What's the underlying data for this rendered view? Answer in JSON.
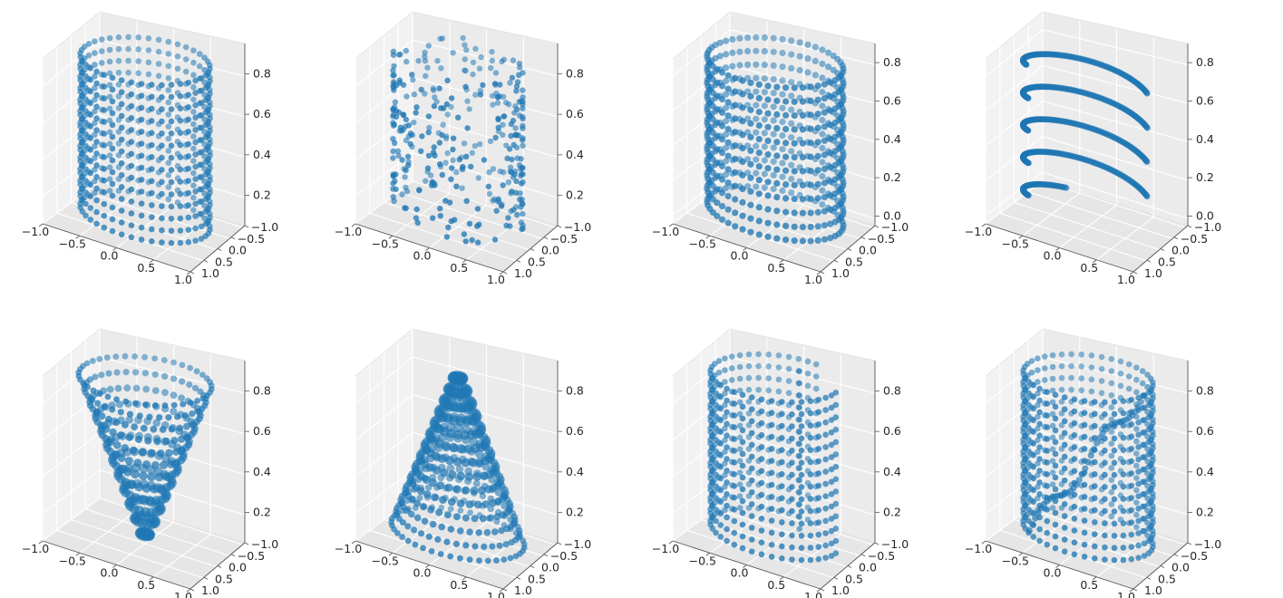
{
  "figure": {
    "layout": "2 rows x 4 columns of 3D scatter subplots"
  },
  "chart_data": [
    {
      "type": "scatter",
      "shape": "cylinder-grid",
      "x_ticks": [
        "−1.0",
        "−0.5",
        "0.0",
        "0.5",
        "1.0"
      ],
      "y_ticks": [
        "−1.0",
        "−0.5",
        "0.0",
        "0.5",
        "1.0"
      ],
      "z_ticks": [
        "0.2",
        "0.4",
        "0.6",
        "0.8"
      ],
      "xlim": [
        -1,
        1
      ],
      "ylim": [
        -1,
        1
      ],
      "zlim": [
        0.05,
        0.95
      ],
      "grid": true,
      "marker_color": "#1f77b4"
    },
    {
      "type": "scatter",
      "shape": "cylinder-random",
      "x_ticks": [
        "−1.0",
        "−0.5",
        "0.0",
        "0.5",
        "1.0"
      ],
      "y_ticks": [
        "−1.0",
        "−0.5",
        "0.0",
        "0.5",
        "1.0"
      ],
      "z_ticks": [
        "0.2",
        "0.4",
        "0.6",
        "0.8"
      ],
      "xlim": [
        -1,
        1
      ],
      "ylim": [
        -1,
        1
      ],
      "zlim": [
        0.05,
        0.95
      ],
      "grid": true,
      "marker_color": "#1f77b4"
    },
    {
      "type": "scatter",
      "shape": "rings",
      "x_ticks": [
        "−1.0",
        "−0.5",
        "0.0",
        "0.5",
        "1.0"
      ],
      "y_ticks": [
        "−1.0",
        "−0.5",
        "0.0",
        "0.5",
        "1.0"
      ],
      "z_ticks": [
        "0.0",
        "0.2",
        "0.4",
        "0.6",
        "0.8"
      ],
      "xlim": [
        -1,
        1
      ],
      "ylim": [
        -1,
        1
      ],
      "zlim": [
        -0.05,
        0.9
      ],
      "grid": true,
      "marker_color": "#1f77b4"
    },
    {
      "type": "scatter",
      "shape": "spiral",
      "x_ticks": [
        "−1.0",
        "−0.5",
        "0.0",
        "0.5",
        "1.0"
      ],
      "y_ticks": [
        "−1.0",
        "−0.5",
        "0.0",
        "0.5",
        "1.0"
      ],
      "z_ticks": [
        "0.0",
        "0.2",
        "0.4",
        "0.6",
        "0.8"
      ],
      "xlim": [
        -1,
        1
      ],
      "ylim": [
        -1,
        1
      ],
      "zlim": [
        -0.05,
        0.9
      ],
      "grid": true,
      "marker_color": "#1f77b4"
    },
    {
      "type": "scatter",
      "shape": "cone-down",
      "x_ticks": [
        "−1.0",
        "−0.5",
        "0.0",
        "0.5",
        "1.0"
      ],
      "y_ticks": [
        "−1.0",
        "−0.5",
        "0.0",
        "0.5",
        "1.0"
      ],
      "z_ticks": [
        "0.2",
        "0.4",
        "0.6",
        "0.8"
      ],
      "xlim": [
        -1,
        1
      ],
      "ylim": [
        -1,
        1
      ],
      "zlim": [
        0.05,
        0.95
      ],
      "grid": true,
      "marker_color": "#1f77b4"
    },
    {
      "type": "scatter",
      "shape": "cone-up",
      "x_ticks": [
        "−1.0",
        "−0.5",
        "0.0",
        "0.5",
        "1.0"
      ],
      "y_ticks": [
        "−1.0",
        "−0.5",
        "0.0",
        "0.5",
        "1.0"
      ],
      "z_ticks": [
        "0.2",
        "0.4",
        "0.6",
        "0.8"
      ],
      "xlim": [
        -1,
        1
      ],
      "ylim": [
        -1,
        1
      ],
      "zlim": [
        0.05,
        0.95
      ],
      "grid": true,
      "marker_color": "#1f77b4"
    },
    {
      "type": "scatter",
      "shape": "cylinder-cut",
      "x_ticks": [
        "−1.0",
        "−0.5",
        "0.0",
        "0.5",
        "1.0"
      ],
      "y_ticks": [
        "−1.0",
        "−0.5",
        "0.0",
        "0.5",
        "1.0"
      ],
      "z_ticks": [
        "0.2",
        "0.4",
        "0.6",
        "0.8"
      ],
      "xlim": [
        -1,
        1
      ],
      "ylim": [
        -1,
        1
      ],
      "zlim": [
        0.05,
        0.95
      ],
      "grid": true,
      "marker_color": "#1f77b4"
    },
    {
      "type": "scatter",
      "shape": "cylinder-wave",
      "x_ticks": [
        "−1.0",
        "−0.5",
        "0.0",
        "0.5",
        "1.0"
      ],
      "y_ticks": [
        "−1.0",
        "−0.5",
        "0.0",
        "0.5",
        "1.0"
      ],
      "z_ticks": [
        "0.2",
        "0.4",
        "0.6",
        "0.8"
      ],
      "xlim": [
        -1,
        1
      ],
      "ylim": [
        -1,
        1
      ],
      "zlim": [
        0.05,
        0.95
      ],
      "grid": true,
      "marker_color": "#1f77b4"
    }
  ]
}
